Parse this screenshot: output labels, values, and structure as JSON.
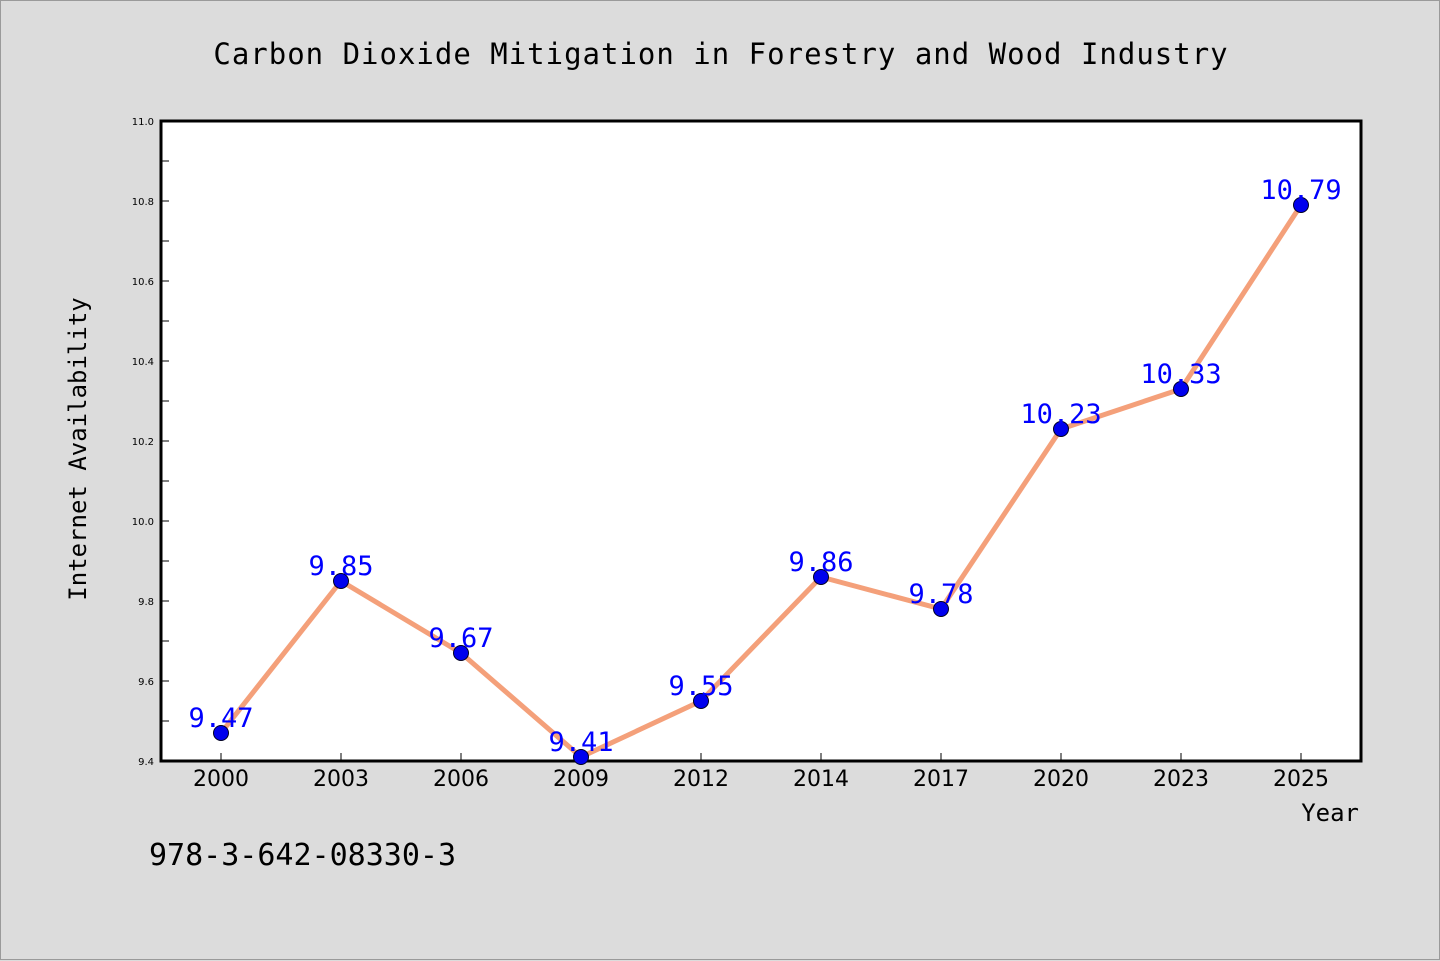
{
  "chart_data": {
    "type": "line",
    "title": "Carbon Dioxide Mitigation in Forestry and Wood Industry",
    "xlabel": "Year",
    "ylabel": "Internet Availability",
    "categories": [
      "2000",
      "2003",
      "2006",
      "2009",
      "2012",
      "2014",
      "2017",
      "2020",
      "2023",
      "2025"
    ],
    "series": [
      {
        "values": [
          9.47,
          9.85,
          9.67,
          9.41,
          9.55,
          9.86,
          9.78,
          10.23,
          10.33,
          10.79
        ],
        "labels": [
          "9.47",
          "9.85",
          "9.67",
          "9.41",
          "9.55",
          "9.86",
          "9.78",
          "10.23",
          "10.33",
          "10.79"
        ],
        "line_color": "#f4a07a",
        "marker_color": "#0000ee",
        "label_color": "#0000ff"
      }
    ],
    "ylim": [
      9.4,
      11.0
    ],
    "yticks": [
      "9.4",
      "9.6",
      "9.8",
      "10.0",
      "10.2",
      "10.4",
      "10.6",
      "10.8",
      "11.0"
    ],
    "grid": false,
    "legend": "none"
  },
  "annotation": {
    "text": "978-3-642-08330-3"
  },
  "colors": {
    "background": "#dcdcdc",
    "plot_background": "#ffffff",
    "axes_frame": "#000000"
  }
}
